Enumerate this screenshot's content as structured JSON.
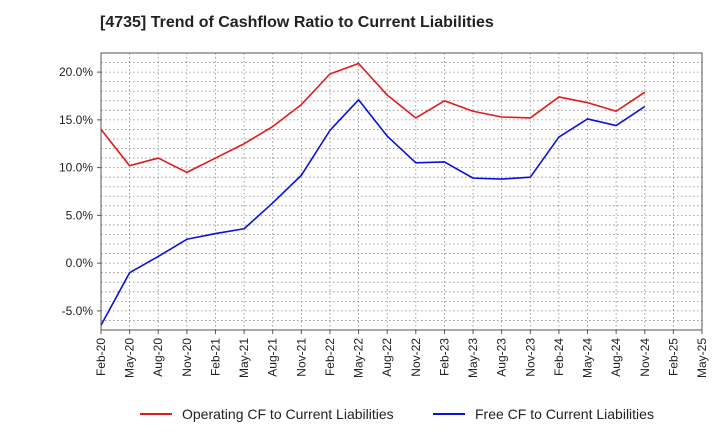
{
  "chart_data": {
    "type": "line",
    "title": "[4735]  Trend of Cashflow Ratio to Current Liabilities",
    "xlabel": "",
    "ylabel": "",
    "x": [
      "Feb-20",
      "May-20",
      "Aug-20",
      "Nov-20",
      "Feb-21",
      "May-21",
      "Aug-21",
      "Nov-21",
      "Feb-22",
      "May-22",
      "Aug-22",
      "Nov-22",
      "Feb-23",
      "May-23",
      "Aug-23",
      "Nov-23",
      "Feb-24",
      "May-24",
      "Aug-24",
      "Nov-24",
      "Feb-25",
      "May-25"
    ],
    "ylim": [
      -7,
      22
    ],
    "yticks": [
      -5,
      0,
      5,
      10,
      15,
      20
    ],
    "ytick_labels": [
      "-5.0%",
      "0.0%",
      "5.0%",
      "10.0%",
      "15.0%",
      "20.0%"
    ],
    "grid": true,
    "legend_position": "bottom",
    "series": [
      {
        "name": "Operating CF to Current Liabilities",
        "color": "#e31a1c",
        "values": [
          14.0,
          10.2,
          11.0,
          9.5,
          11.0,
          12.5,
          14.3,
          16.6,
          19.8,
          20.9,
          17.6,
          15.2,
          17.0,
          15.9,
          15.3,
          15.2,
          17.4,
          16.8,
          15.9,
          17.9,
          null,
          null
        ]
      },
      {
        "name": "Free CF to Current Liabilities",
        "color": "#0a12d8",
        "values": [
          -6.5,
          -1.0,
          0.7,
          2.5,
          3.1,
          3.6,
          6.3,
          9.2,
          13.9,
          17.1,
          13.3,
          10.5,
          10.6,
          8.9,
          8.8,
          9.0,
          13.2,
          15.1,
          14.4,
          16.4,
          null,
          null
        ]
      }
    ]
  }
}
